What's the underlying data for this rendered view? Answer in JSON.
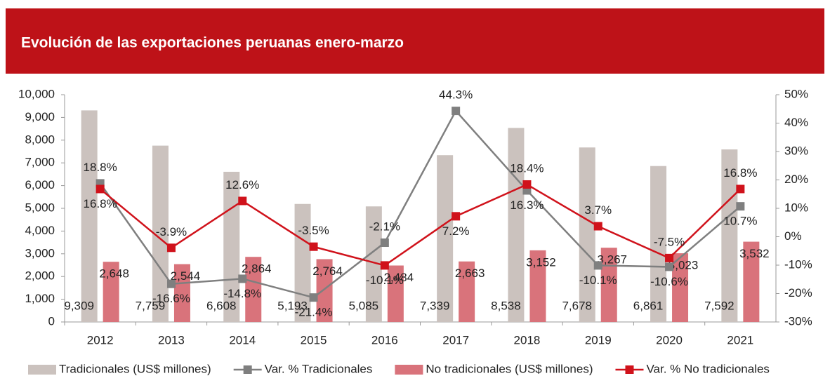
{
  "chart_data": {
    "type": "bar",
    "title": "Evolución de las exportaciones peruanas enero-marzo",
    "categories": [
      "2012",
      "2013",
      "2014",
      "2015",
      "2016",
      "2017",
      "2018",
      "2019",
      "2020",
      "2021"
    ],
    "ylim": [
      0,
      10000
    ],
    "yticks": [
      0,
      {
        "value": 1000,
        "label": "1,000"
      },
      {
        "value": 2000,
        "label": "2,000"
      },
      {
        "value": 3000,
        "label": "3,000"
      },
      {
        "value": 4000,
        "label": "4,000"
      },
      {
        "value": 5000,
        "label": "5,000"
      },
      {
        "value": 6000,
        "label": "6,000"
      },
      {
        "value": 7000,
        "label": "7,000"
      },
      {
        "value": 8000,
        "label": "8,000"
      },
      {
        "value": 9000,
        "label": "9,000"
      },
      {
        "value": 10000,
        "label": "10,000"
      }
    ],
    "y2lim": [
      -30,
      50
    ],
    "y2ticks": [
      {
        "value": -30,
        "label": "-30%"
      },
      {
        "value": -20,
        "label": "-20%"
      },
      {
        "value": -10,
        "label": "-10%"
      },
      {
        "value": 0,
        "label": "0%"
      },
      {
        "value": 10,
        "label": "10%"
      },
      {
        "value": 20,
        "label": "20%"
      },
      {
        "value": 30,
        "label": "30%"
      },
      {
        "value": 40,
        "label": "40%"
      },
      {
        "value": 50,
        "label": "50%"
      }
    ],
    "legend": "bottom",
    "series": [
      {
        "name": "Tradicionales (US$ millones)",
        "type": "bar",
        "color": "#cbc2be",
        "values": [
          9309,
          7759,
          6608,
          5193,
          5085,
          7339,
          8538,
          7678,
          6861,
          7592
        ],
        "value_labels": [
          "9,309",
          "7,759",
          "6,608",
          "5,193",
          "5,085",
          "7,339",
          "8,538",
          "7,678",
          "6,861",
          "7,592"
        ]
      },
      {
        "name": "Var. % Tradicionales",
        "type": "line",
        "axis": "y2",
        "color": "#7f7f7f",
        "values": [
          18.8,
          -16.6,
          -14.8,
          -21.4,
          -2.1,
          44.3,
          16.3,
          -10.1,
          -10.6,
          10.7
        ],
        "value_labels": [
          "18.8%",
          "-16.6%",
          "-14.8%",
          "-21.4%",
          "-2.1%",
          "44.3%",
          "16.3%",
          "-10.1%",
          "-10.6%",
          "10.7%"
        ]
      },
      {
        "name": "No tradicionales (US$ millones)",
        "type": "bar",
        "color": "#d9737b",
        "values": [
          2648,
          2544,
          2864,
          2764,
          2484,
          2663,
          3152,
          3267,
          3023,
          3532
        ],
        "value_labels": [
          "2,648",
          "2,544",
          "2,864",
          "2,764",
          "2,484",
          "2,663",
          "3,152",
          "3,267",
          "3,023",
          "3,532"
        ]
      },
      {
        "name": "Var. % No tradicionales",
        "type": "line",
        "axis": "y2",
        "color": "#d0121b",
        "values": [
          16.8,
          -3.9,
          12.6,
          -3.5,
          -10.1,
          7.2,
          18.4,
          3.7,
          -7.5,
          16.8
        ],
        "value_labels": [
          "16.8%",
          "-3.9%",
          "12.6%",
          "-3.5%",
          "-10.1%",
          "7.2%",
          "18.4%",
          "3.7%",
          "-7.5%",
          "16.8%"
        ]
      }
    ]
  }
}
